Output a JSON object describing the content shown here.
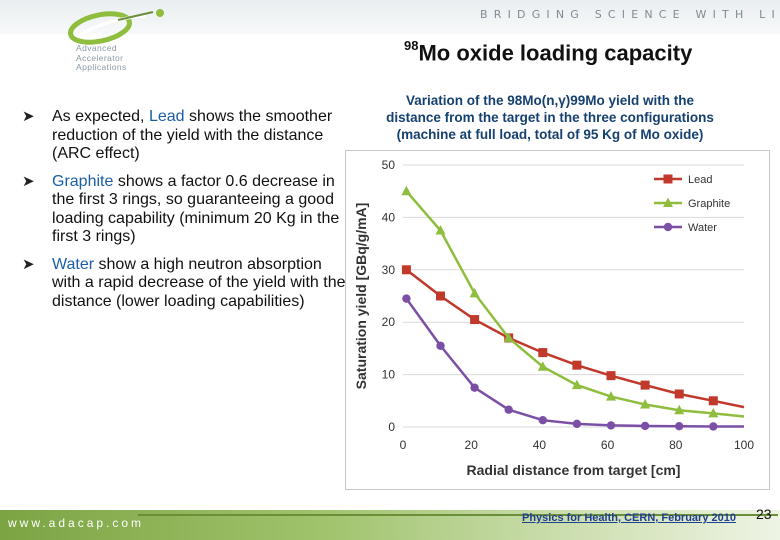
{
  "header": {
    "tagline": "BRIDGING SCIENCE WITH LIFE",
    "logo_lines": [
      "Advanced",
      "Accelerator",
      "Applications"
    ]
  },
  "slide": {
    "title_sup": "98",
    "title_rest": "Mo oxide loading capacity"
  },
  "bullets": [
    {
      "pre": "As expected, ",
      "hl": "Lead",
      "post": " shows the smoother  reduction of the yield with the distance (ARC effect)"
    },
    {
      "pre": "",
      "hl": "Graphite",
      "post": " shows a factor 0.6 decrease in the first 3 rings, so guaranteeing a good loading capability (minimum 20 Kg in the first 3 rings)"
    },
    {
      "pre": "",
      "hl": "Water",
      "post": " show a high neutron absorption with a rapid decrease of the yield with the distance (lower loading capabilities)"
    }
  ],
  "chart_caption": {
    "line1": "Variation of the 98Mo(n,γ)99Mo yield with the",
    "line2": "distance from the target in the three configurations",
    "line3": "(machine at full load, total of 95 Kg of Mo oxide)"
  },
  "chart_data": {
    "type": "line",
    "xlabel": "Radial distance from target [cm]",
    "ylabel": "Saturation yield [GBq/g/mA]",
    "xlim": [
      0,
      100
    ],
    "ylim": [
      0,
      50
    ],
    "xticks": [
      0,
      20,
      40,
      60,
      80,
      100
    ],
    "yticks": [
      0,
      10,
      20,
      30,
      40,
      50
    ],
    "grid": true,
    "legend": "top-right",
    "series": [
      {
        "name": "Lead",
        "color": "#c0392b",
        "marker": "square",
        "x": [
          1,
          11,
          21,
          31,
          41,
          51,
          61,
          71,
          81,
          91,
          100
        ],
        "y": [
          30,
          25,
          20.5,
          17,
          14.2,
          11.8,
          9.8,
          8,
          6.3,
          5,
          3.8
        ]
      },
      {
        "name": "Graphite",
        "color": "#8fbd3e",
        "marker": "triangle",
        "x": [
          1,
          11,
          21,
          31,
          41,
          51,
          61,
          71,
          81,
          91,
          100
        ],
        "y": [
          45,
          37.5,
          25.5,
          17,
          11.5,
          8,
          5.8,
          4.3,
          3.2,
          2.6,
          2
        ]
      },
      {
        "name": "Water",
        "color": "#7b4fa6",
        "marker": "circle",
        "x": [
          1,
          11,
          21,
          31,
          41,
          51,
          61,
          71,
          81,
          91,
          100
        ],
        "y": [
          24.5,
          15.5,
          7.5,
          3.3,
          1.3,
          0.6,
          0.3,
          0.2,
          0.15,
          0.1,
          0.1
        ]
      }
    ]
  },
  "footer": {
    "website": "www.adacap.com",
    "text": "Physics for Health, CERN, February 2010",
    "page": "23"
  }
}
